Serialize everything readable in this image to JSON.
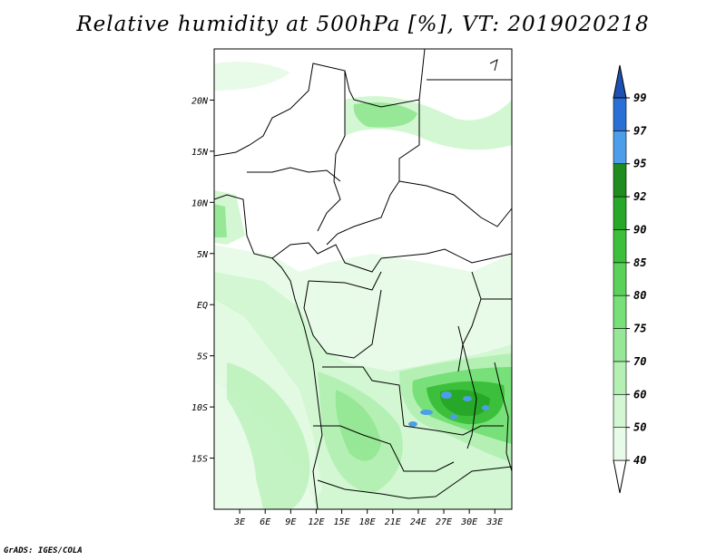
{
  "title": "Relative humidity at 500hPa [%], VT: 2019020218",
  "credit": "GrADS: IGES/COLA",
  "map": {
    "lon_range": [
      0,
      35
    ],
    "lat_range": [
      -20,
      25
    ],
    "lon_ticks": [
      "3E",
      "6E",
      "9E",
      "12E",
      "15E",
      "18E",
      "21E",
      "24E",
      "27E",
      "30E",
      "33E"
    ],
    "lat_ticks": [
      "20N",
      "15N",
      "10N",
      "5N",
      "EQ",
      "5S",
      "10S",
      "15S"
    ]
  },
  "colorbar": {
    "levels": [
      "40",
      "50",
      "60",
      "70",
      "75",
      "80",
      "85",
      "90",
      "92",
      "95",
      "97",
      "99"
    ],
    "colors": [
      "#ffffff",
      "#e8fbe8",
      "#d2f7d2",
      "#b4f0b4",
      "#96e896",
      "#78e078",
      "#5ad25a",
      "#3cc03c",
      "#28a828",
      "#1e8c1e",
      "#4d9ee8",
      "#2a6fd6",
      "#1e50b4"
    ]
  }
}
